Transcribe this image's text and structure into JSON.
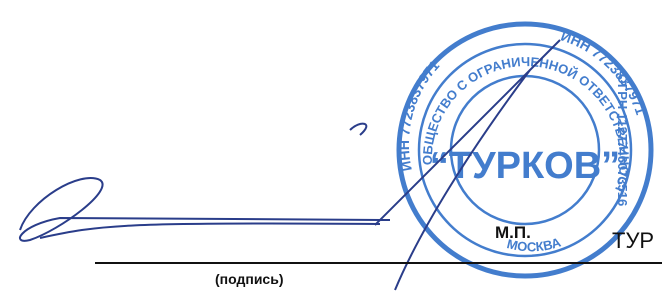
{
  "stamp": {
    "inn": "ИНН 7723837971",
    "ring_text": "ОБЩЕСТВО С ОГРАНИЧЕННОЙ ОТВЕТСТВЕННОСТЬЮ",
    "ogrn": "ОГРН 1127746073516",
    "name": "“ТУРКОВ”",
    "city": "МОСКВА"
  },
  "stamp_mark": "М.П.",
  "cut_text": "ТУР",
  "signature_caption": "(подпись)"
}
